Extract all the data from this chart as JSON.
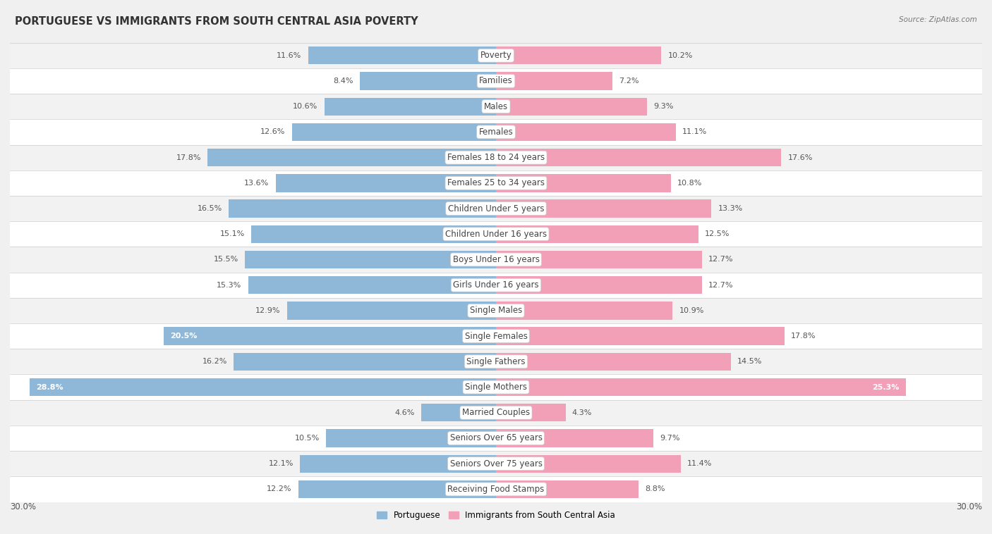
{
  "title": "PORTUGUESE VS IMMIGRANTS FROM SOUTH CENTRAL ASIA POVERTY",
  "source": "Source: ZipAtlas.com",
  "categories": [
    "Poverty",
    "Families",
    "Males",
    "Females",
    "Females 18 to 24 years",
    "Females 25 to 34 years",
    "Children Under 5 years",
    "Children Under 16 years",
    "Boys Under 16 years",
    "Girls Under 16 years",
    "Single Males",
    "Single Females",
    "Single Fathers",
    "Single Mothers",
    "Married Couples",
    "Seniors Over 65 years",
    "Seniors Over 75 years",
    "Receiving Food Stamps"
  ],
  "portuguese": [
    11.6,
    8.4,
    10.6,
    12.6,
    17.8,
    13.6,
    16.5,
    15.1,
    15.5,
    15.3,
    12.9,
    20.5,
    16.2,
    28.8,
    4.6,
    10.5,
    12.1,
    12.2
  ],
  "immigrants": [
    10.2,
    7.2,
    9.3,
    11.1,
    17.6,
    10.8,
    13.3,
    12.5,
    12.7,
    12.7,
    10.9,
    17.8,
    14.5,
    25.3,
    4.3,
    9.7,
    11.4,
    8.8
  ],
  "max_val": 30.0,
  "blue_color": "#8fb8d8",
  "pink_color": "#f2a0b8",
  "row_bg_even": "#f2f2f2",
  "row_bg_odd": "#ffffff",
  "label_fontsize": 8.5,
  "value_fontsize": 8.0,
  "title_fontsize": 10.5,
  "inside_threshold": 18
}
